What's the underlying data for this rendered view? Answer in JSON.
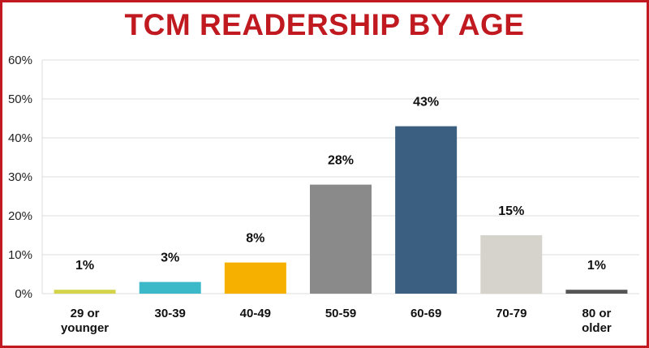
{
  "chart_data": {
    "type": "bar",
    "title": "TCM READERSHIP BY AGE",
    "categories": [
      "29 or younger",
      "30-39",
      "40-49",
      "50-59",
      "60-69",
      "70-79",
      "80 or older"
    ],
    "category_lines": [
      [
        "29 or",
        "younger"
      ],
      [
        "30-39"
      ],
      [
        "40-49"
      ],
      [
        "50-59"
      ],
      [
        "60-69"
      ],
      [
        "70-79"
      ],
      [
        "80 or",
        "older"
      ]
    ],
    "values": [
      1,
      3,
      8,
      28,
      43,
      15,
      1
    ],
    "data_labels": [
      "1%",
      "3%",
      "8%",
      "28%",
      "43%",
      "15%",
      "1%"
    ],
    "colors": [
      "#d4d44a",
      "#3cb9c9",
      "#f6b100",
      "#8a8a8a",
      "#3b5f80",
      "#d5d3cc",
      "#555555"
    ],
    "ylim": [
      0,
      60
    ],
    "yticks": [
      "0%",
      "10%",
      "20%",
      "30%",
      "40%",
      "50%",
      "60%"
    ],
    "xlabel": "",
    "ylabel": "",
    "grid": true
  },
  "colors": {
    "accent": "#c0191f",
    "grid": "#dddddd"
  }
}
